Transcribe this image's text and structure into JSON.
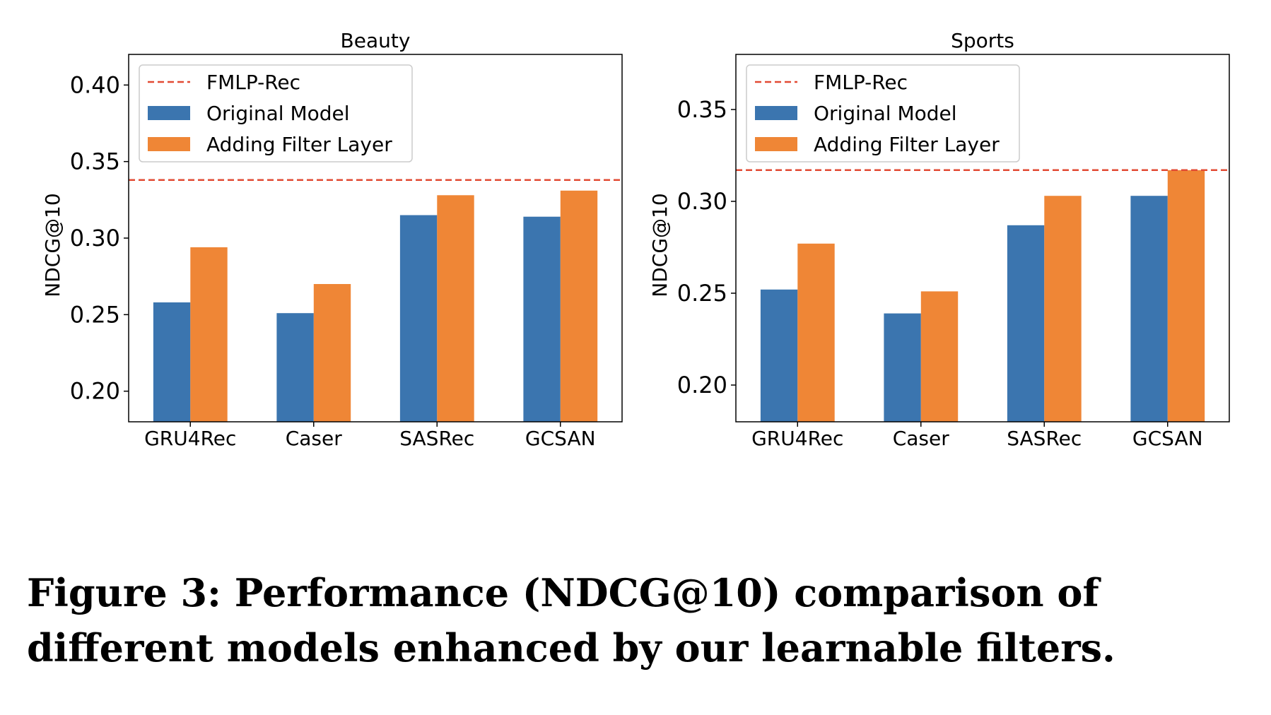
{
  "chart_data": [
    {
      "type": "bar",
      "title": "Beauty",
      "xlabel": "",
      "ylabel": "NDCG@10",
      "categories": [
        "GRU4Rec",
        "Caser",
        "SASRec",
        "GCSAN"
      ],
      "series": [
        {
          "name": "Original Model",
          "values": [
            0.258,
            0.251,
            0.315,
            0.314
          ],
          "color": "#3b75af"
        },
        {
          "name": "Adding Filter Layer",
          "values": [
            0.294,
            0.27,
            0.328,
            0.331
          ],
          "color": "#ef8636"
        }
      ],
      "reference_line": {
        "name": "FMLP-Rec",
        "value": 0.338,
        "style": "dashed",
        "color": "#e24a33"
      },
      "ylim": [
        0.18,
        0.42
      ],
      "yticks": [
        0.2,
        0.25,
        0.3,
        0.35,
        0.4
      ],
      "ytick_labels": [
        "0.20",
        "0.25",
        "0.30",
        "0.35",
        "0.40"
      ],
      "legend": "top-left",
      "grid": false
    },
    {
      "type": "bar",
      "title": "Sports",
      "xlabel": "",
      "ylabel": "NDCG@10",
      "categories": [
        "GRU4Rec",
        "Caser",
        "SASRec",
        "GCSAN"
      ],
      "series": [
        {
          "name": "Original Model",
          "values": [
            0.252,
            0.239,
            0.287,
            0.303
          ],
          "color": "#3b75af"
        },
        {
          "name": "Adding Filter Layer",
          "values": [
            0.277,
            0.251,
            0.303,
            0.317
          ],
          "color": "#ef8636"
        }
      ],
      "reference_line": {
        "name": "FMLP-Rec",
        "value": 0.317,
        "style": "dashed",
        "color": "#e24a33"
      },
      "ylim": [
        0.18,
        0.38
      ],
      "yticks": [
        0.2,
        0.25,
        0.3,
        0.35
      ],
      "ytick_labels": [
        "0.20",
        "0.25",
        "0.30",
        "0.35"
      ],
      "legend": "top-left",
      "grid": false
    }
  ],
  "caption": "Figure 3: Performance (NDCG@10) comparison of different models enhanced by our learnable filters."
}
